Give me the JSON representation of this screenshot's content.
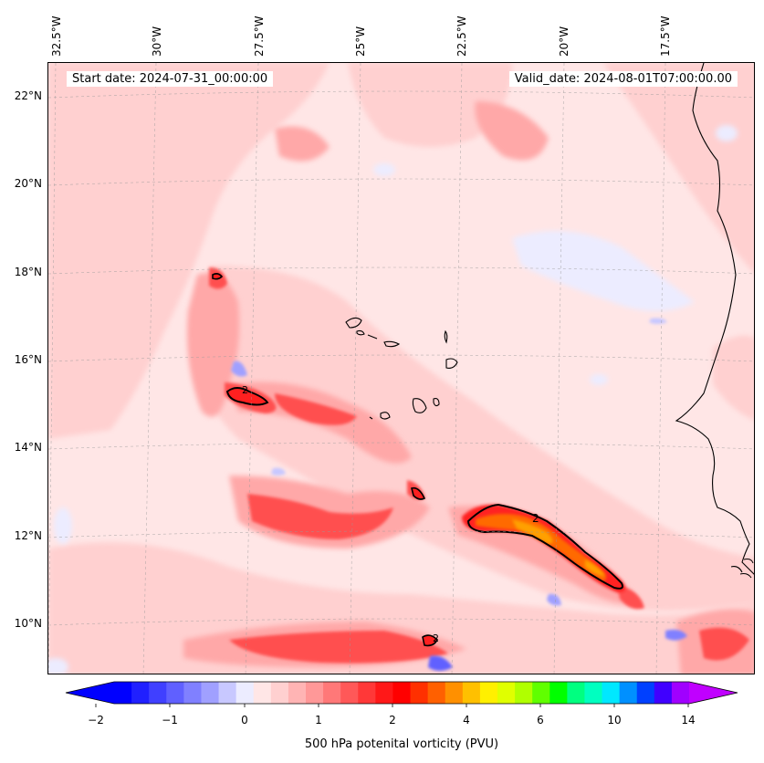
{
  "map": {
    "start_date": "Start date: 2024-07-31_00:00:00",
    "valid_date": "Valid_date: 2024-08-01T07:00:00.00",
    "longitude_labels": [
      "32.5°W",
      "30°W",
      "27.5°W",
      "25°W",
      "22.5°W",
      "20°W",
      "17.5°W"
    ],
    "latitude_labels": [
      "22°N",
      "20°N",
      "18°N",
      "16°N",
      "14°N",
      "12°N",
      "10°N"
    ],
    "contour_label": "2",
    "background_color": "#ffe6e6"
  },
  "colorbar": {
    "label": "500 hPa potenital vorticity (PVU)",
    "tick_labels": [
      "−2",
      "−1",
      "0",
      "1",
      "2",
      "4",
      "6",
      "10",
      "14"
    ],
    "colors": [
      "#0000ff",
      "#2020ff",
      "#4040ff",
      "#6060ff",
      "#8080ff",
      "#a0a0ff",
      "#c8c8ff",
      "#ececff",
      "#ffe6e6",
      "#ffd0d0",
      "#ffb4b4",
      "#ff9898",
      "#ff7878",
      "#ff5858",
      "#ff3838",
      "#ff1818",
      "#ff0000",
      "#ff3000",
      "#ff6000",
      "#ff9000",
      "#ffc000",
      "#fff000",
      "#e0ff00",
      "#b0ff00",
      "#60ff00",
      "#00ff00",
      "#00ff80",
      "#00ffc0",
      "#00e8ff",
      "#0090ff",
      "#0040ff",
      "#4000ff",
      "#a000ff"
    ],
    "under_color": "#0000ff",
    "over_color": "#c000ff"
  }
}
